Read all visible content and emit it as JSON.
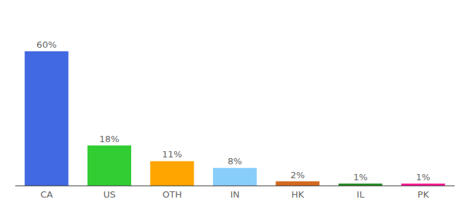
{
  "chart_data": {
    "type": "bar",
    "categories": [
      "CA",
      "US",
      "OTH",
      "IN",
      "HK",
      "IL",
      "PK"
    ],
    "values": [
      60,
      18,
      11,
      8,
      2,
      1,
      1
    ],
    "value_labels": [
      "60%",
      "18%",
      "11%",
      "8%",
      "2%",
      "1%",
      "1%"
    ],
    "colors": [
      "#4169e1",
      "#32cd32",
      "#ffa500",
      "#87cefa",
      "#d2691e",
      "#228b22",
      "#ff1493"
    ],
    "ylim": [
      0,
      60
    ],
    "data_labels": true,
    "tick_labels": "x",
    "grid": false
  }
}
